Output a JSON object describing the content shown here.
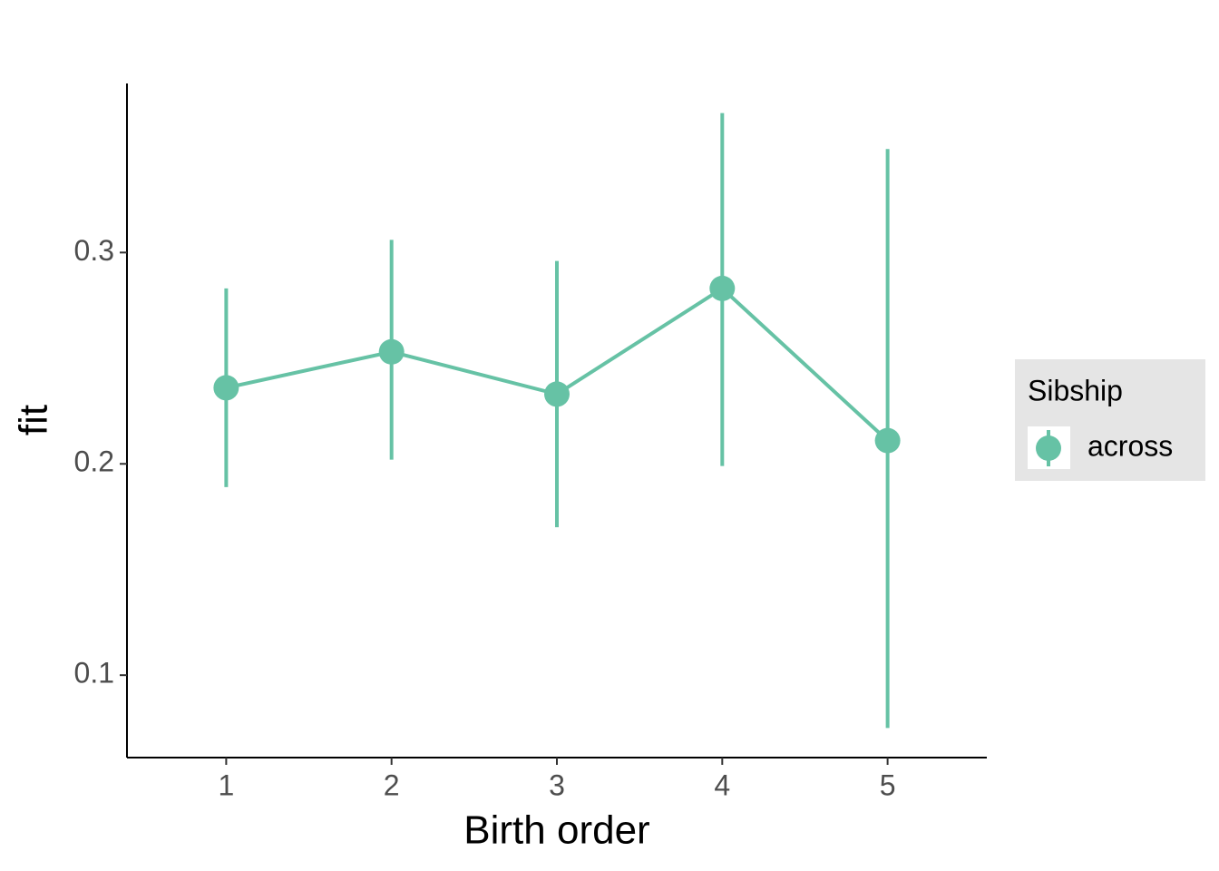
{
  "chart_data": {
    "type": "line",
    "x_label": "Birth order",
    "y_label": "fit",
    "x": [
      1,
      2,
      3,
      4,
      5
    ],
    "series": [
      {
        "name": "across",
        "color": "#66c2a5",
        "values": [
          0.236,
          0.253,
          0.233,
          0.283,
          0.211
        ],
        "lower": [
          0.189,
          0.202,
          0.17,
          0.199,
          0.075
        ],
        "upper": [
          0.283,
          0.306,
          0.296,
          0.366,
          0.349
        ]
      }
    ],
    "xlim": [
      0.4,
      5.6
    ],
    "xticks": [
      1,
      2,
      3,
      4,
      5
    ],
    "ylim": [
      0.061,
      0.38
    ],
    "yticks": [
      0.1,
      0.2,
      0.3
    ],
    "legend_title": "Sibship",
    "legend_position": "right",
    "grid": false
  }
}
